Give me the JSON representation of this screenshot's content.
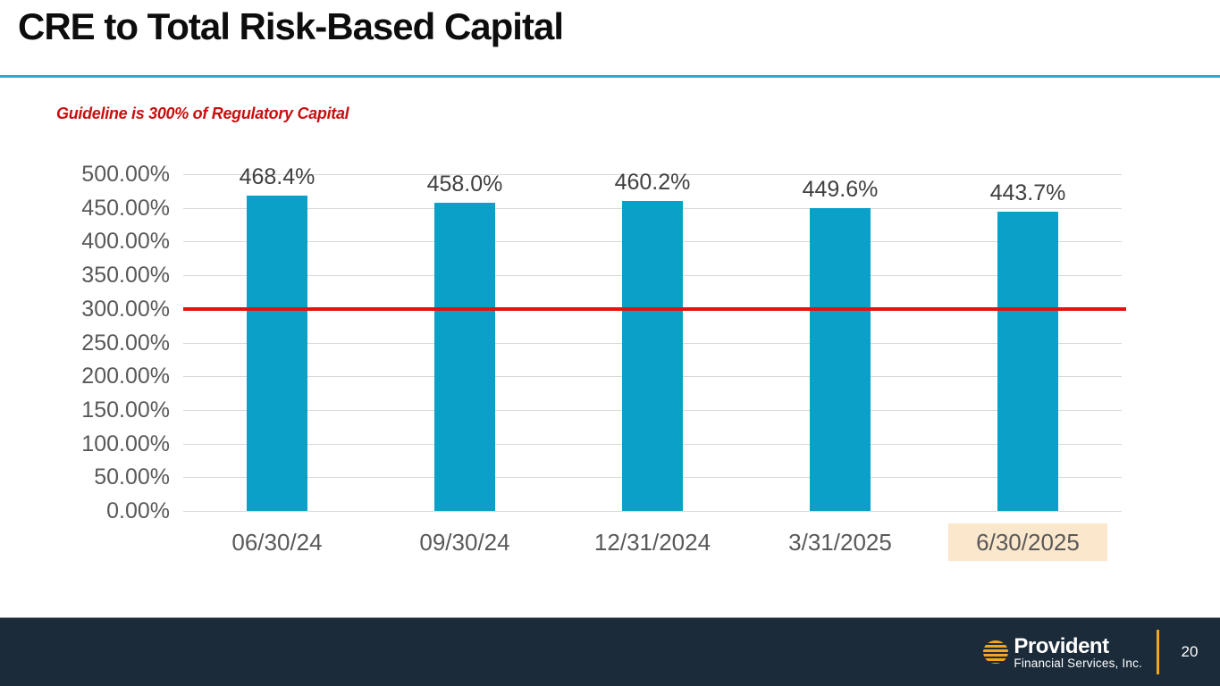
{
  "slide": {
    "title": "CRE to Total Risk-Based Capital",
    "guideline_note": "Guideline is 300% of Regulatory Capital",
    "page_number": "20"
  },
  "footer": {
    "logo_name": "Provident",
    "logo_subtitle": "Financial Services, Inc."
  },
  "colors": {
    "bar": "#0AA0C8",
    "guideline_line": "#E11414",
    "guideline_text": "#C80F0F",
    "title_divider": "#29A9DC",
    "gridline": "#D9D9D9",
    "footer_bg": "#1B2B3A",
    "gold": "#F2A71B",
    "highlight": "#FBE7CC",
    "axis_label": "#595959",
    "data_label": "#404040"
  },
  "chart_data": {
    "type": "bar",
    "title": "",
    "xlabel": "",
    "ylabel": "",
    "categories": [
      "06/30/24",
      "09/30/24",
      "12/31/2024",
      "3/31/2025",
      "6/30/2025"
    ],
    "values": [
      468.4,
      458.0,
      460.2,
      449.6,
      443.7
    ],
    "value_labels": [
      "468.4%",
      "458.0%",
      "460.2%",
      "449.6%",
      "443.7%"
    ],
    "yticks": [
      "0.00%",
      "50.00%",
      "100.00%",
      "150.00%",
      "200.00%",
      "250.00%",
      "300.00%",
      "350.00%",
      "400.00%",
      "450.00%",
      "500.00%"
    ],
    "ylim": [
      0,
      500
    ],
    "ytick_step": 50,
    "guideline_value": 300,
    "highlighted_category_index": 4,
    "grid": true,
    "legend": false
  }
}
